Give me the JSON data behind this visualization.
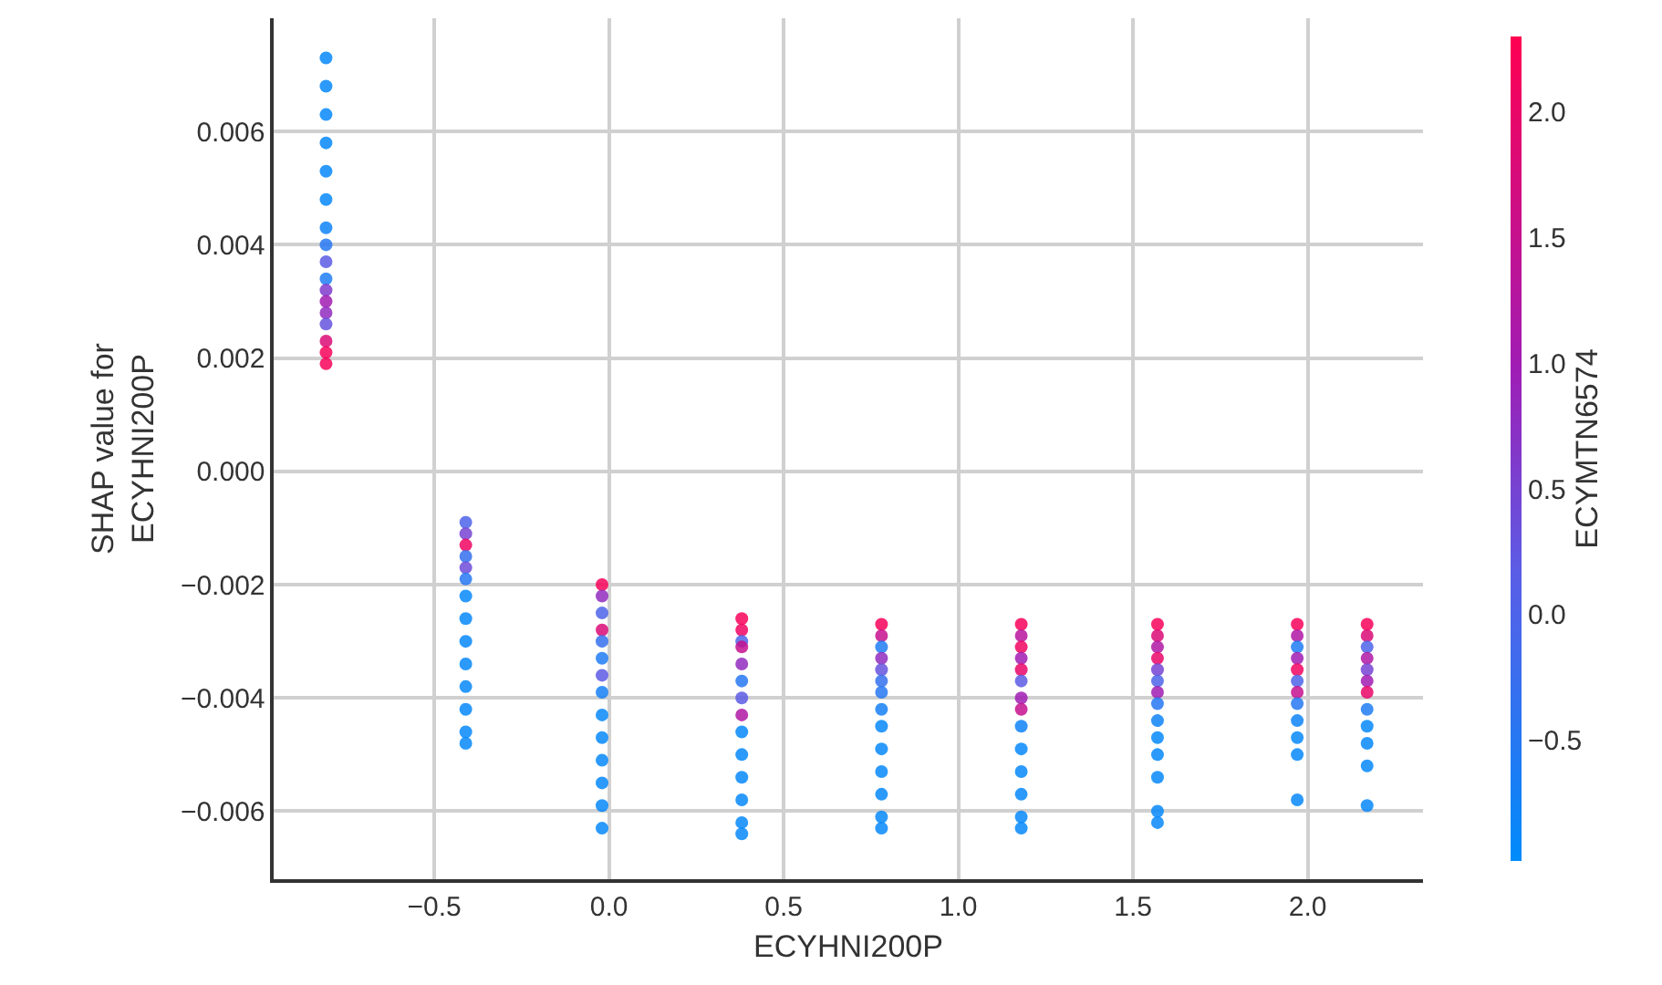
{
  "chart_data": {
    "type": "scatter",
    "xlabel": "ECYHNI200P",
    "ylabel": "SHAP value for\nECYHNI200P",
    "clabel": "ECYMTN6574",
    "grid": true,
    "marker": "circle",
    "xlim": [
      -0.96,
      2.33
    ],
    "xticks": [
      {
        "value": -0.5,
        "label": "−0.5"
      },
      {
        "value": 0,
        "label": "0.0"
      },
      {
        "value": 0.5,
        "label": "0.5"
      },
      {
        "value": 1,
        "label": "1.0"
      },
      {
        "value": 1.5,
        "label": "1.5"
      },
      {
        "value": 2,
        "label": "2.0"
      }
    ],
    "ylim": [
      -0.0072,
      0.008
    ],
    "yticks": [
      {
        "value": -0.006,
        "label": "−0.006"
      },
      {
        "value": -0.004,
        "label": "−0.004"
      },
      {
        "value": -0.002,
        "label": "−0.002"
      },
      {
        "value": 0,
        "label": "0.000"
      },
      {
        "value": 0.002,
        "label": "0.002"
      },
      {
        "value": 0.004,
        "label": "0.004"
      },
      {
        "value": 0.006,
        "label": "0.006"
      }
    ],
    "clim": [
      -0.98,
      2.3
    ],
    "cticks": [
      {
        "value": -0.5,
        "label": "−0.5"
      },
      {
        "value": 0,
        "label": "0.0"
      },
      {
        "value": 0.5,
        "label": "0.5"
      },
      {
        "value": 1,
        "label": "1.0"
      },
      {
        "value": 1.5,
        "label": "1.5"
      },
      {
        "value": 2,
        "label": "2.0"
      }
    ],
    "x": [
      -0.81,
      -0.81,
      -0.81,
      -0.81,
      -0.81,
      -0.81,
      -0.81,
      -0.81,
      -0.81,
      -0.81,
      -0.81,
      -0.81,
      -0.81,
      -0.81,
      -0.81,
      -0.81,
      -0.81,
      -0.41,
      -0.41,
      -0.41,
      -0.41,
      -0.41,
      -0.41,
      -0.41,
      -0.41,
      -0.41,
      -0.41,
      -0.41,
      -0.41,
      -0.41,
      -0.41,
      -0.02,
      -0.02,
      -0.02,
      -0.02,
      -0.02,
      -0.02,
      -0.02,
      -0.02,
      -0.02,
      -0.02,
      -0.02,
      -0.02,
      -0.02,
      -0.02,
      0.38,
      0.38,
      0.38,
      0.38,
      0.38,
      0.38,
      0.38,
      0.38,
      0.38,
      0.38,
      0.38,
      0.38,
      0.38,
      0.38,
      0.78,
      0.78,
      0.78,
      0.78,
      0.78,
      0.78,
      0.78,
      0.78,
      0.78,
      0.78,
      0.78,
      0.78,
      0.78,
      0.78,
      1.18,
      1.18,
      1.18,
      1.18,
      1.18,
      1.18,
      1.18,
      1.18,
      1.18,
      1.18,
      1.18,
      1.18,
      1.18,
      1.18,
      1.57,
      1.57,
      1.57,
      1.57,
      1.57,
      1.57,
      1.57,
      1.57,
      1.57,
      1.57,
      1.57,
      1.57,
      1.57,
      1.57,
      1.97,
      1.97,
      1.97,
      1.97,
      1.97,
      1.97,
      1.97,
      1.97,
      1.97,
      1.97,
      1.97,
      1.97,
      2.17,
      2.17,
      2.17,
      2.17,
      2.17,
      2.17,
      2.17,
      2.17,
      2.17,
      2.17,
      2.17,
      2.17
    ],
    "values": [
      0.0073,
      0.0068,
      0.0063,
      0.0058,
      0.0053,
      0.0048,
      0.0043,
      0.004,
      0.0037,
      0.0034,
      0.0032,
      0.003,
      0.0028,
      0.0026,
      0.0023,
      0.0021,
      0.0019,
      -0.0009,
      -0.0011,
      -0.0013,
      -0.0015,
      -0.0017,
      -0.0019,
      -0.0022,
      -0.0026,
      -0.003,
      -0.0034,
      -0.0038,
      -0.0042,
      -0.0046,
      -0.0048,
      -0.002,
      -0.0022,
      -0.0025,
      -0.0028,
      -0.003,
      -0.0033,
      -0.0036,
      -0.0039,
      -0.0043,
      -0.0047,
      -0.0051,
      -0.0055,
      -0.0059,
      -0.0063,
      -0.0026,
      -0.0028,
      -0.003,
      -0.0031,
      -0.0034,
      -0.0037,
      -0.004,
      -0.0043,
      -0.0046,
      -0.005,
      -0.0054,
      -0.0058,
      -0.0062,
      -0.0064,
      -0.0027,
      -0.0029,
      -0.0031,
      -0.0033,
      -0.0035,
      -0.0037,
      -0.0039,
      -0.0042,
      -0.0045,
      -0.0049,
      -0.0053,
      -0.0057,
      -0.0061,
      -0.0063,
      -0.0027,
      -0.0029,
      -0.0031,
      -0.0033,
      -0.0035,
      -0.0037,
      -0.004,
      -0.0042,
      -0.0045,
      -0.0049,
      -0.0053,
      -0.0057,
      -0.0061,
      -0.0063,
      -0.0027,
      -0.0029,
      -0.0031,
      -0.0033,
      -0.0035,
      -0.0037,
      -0.0039,
      -0.0041,
      -0.0044,
      -0.0047,
      -0.005,
      -0.0054,
      -0.006,
      -0.0062,
      -0.0027,
      -0.0029,
      -0.0031,
      -0.0033,
      -0.0035,
      -0.0037,
      -0.0039,
      -0.0041,
      -0.0044,
      -0.0047,
      -0.005,
      -0.0058,
      -0.0027,
      -0.0029,
      -0.0031,
      -0.0033,
      -0.0035,
      -0.0037,
      -0.0039,
      -0.0042,
      -0.0045,
      -0.0048,
      -0.0052,
      -0.0059
    ],
    "cvalues": [
      -0.9,
      -0.9,
      -0.9,
      -0.9,
      -0.9,
      -0.9,
      -0.8,
      -0.5,
      0.2,
      -0.6,
      0.6,
      1.0,
      0.8,
      0.3,
      1.8,
      2.2,
      2.2,
      0.0,
      0.5,
      2.1,
      -0.3,
      0.4,
      -0.5,
      -0.9,
      -0.9,
      -0.9,
      -0.9,
      -0.9,
      -0.9,
      -0.9,
      -0.9,
      2.2,
      0.8,
      0.0,
      1.8,
      -0.3,
      -0.6,
      0.2,
      -0.7,
      -0.9,
      -0.9,
      -0.9,
      -0.9,
      -0.9,
      -0.9,
      2.2,
      2.1,
      0.0,
      1.5,
      0.8,
      -0.5,
      0.2,
      1.2,
      -0.9,
      -0.9,
      -0.9,
      -0.9,
      -0.9,
      -0.9,
      2.2,
      1.5,
      -0.6,
      0.8,
      0.3,
      -0.3,
      -0.5,
      -0.7,
      -0.9,
      -0.9,
      -0.9,
      -0.9,
      -0.9,
      -0.9,
      2.2,
      1.3,
      2.1,
      1.0,
      2.0,
      0.2,
      1.0,
      1.5,
      -0.8,
      -0.9,
      -0.9,
      -0.9,
      -0.9,
      -0.9,
      2.2,
      1.8,
      1.2,
      2.0,
      0.5,
      0.0,
      1.0,
      -0.5,
      -0.8,
      -0.9,
      -0.9,
      -0.9,
      -0.9,
      -0.9,
      2.2,
      1.2,
      -0.6,
      1.0,
      2.1,
      0.0,
      1.5,
      -0.5,
      -0.8,
      -0.9,
      -0.9,
      -0.9,
      2.2,
      1.8,
      0.0,
      1.2,
      0.5,
      1.0,
      2.0,
      -0.6,
      -0.9,
      -0.9,
      -0.9,
      -0.9
    ]
  }
}
